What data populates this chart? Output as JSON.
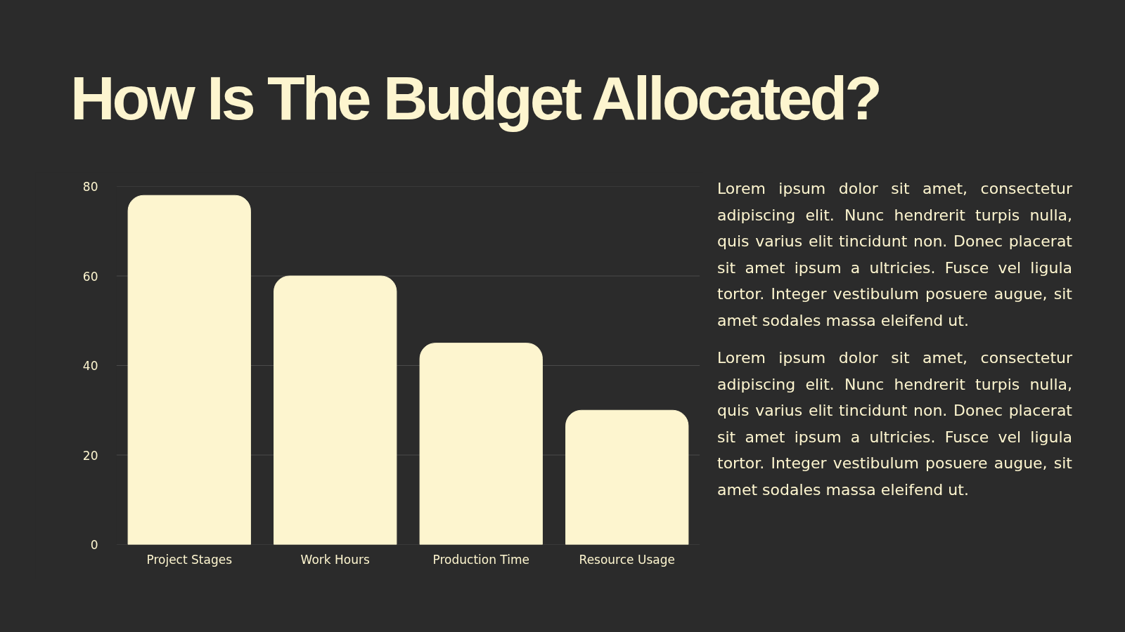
{
  "chart_data": {
    "type": "bar",
    "title": "How Is The Budget Allocated?",
    "categories": [
      "Project Stages",
      "Work Hours",
      "Production Time",
      "Resource Usage"
    ],
    "values": [
      78,
      60,
      45,
      30
    ],
    "color": "#fdf5cf",
    "ylim": [
      0,
      80
    ],
    "yticks": [
      0,
      20,
      40,
      60,
      80
    ],
    "grid": "y",
    "annotations": [
      "Lorem ipsum dolor sit amet, consectetur adipiscing elit. Nunc hendrerit turpis nulla, quis varius elit tincidunt non. Donec placerat sit amet ipsum a ultricies. Fusce vel ligula tortor. Integer vestibulum posuere augue, sit amet sodales massa eleifend ut.",
      "Lorem ipsum dolor sit amet, consectetur adipiscing elit. Nunc hendrerit turpis nulla, quis varius elit tincidunt non. Donec placerat sit amet ipsum a ultricies. Fusce vel ligula tortor. Integer vestibulum posuere augue, sit amet sodales massa eleifend ut."
    ]
  }
}
